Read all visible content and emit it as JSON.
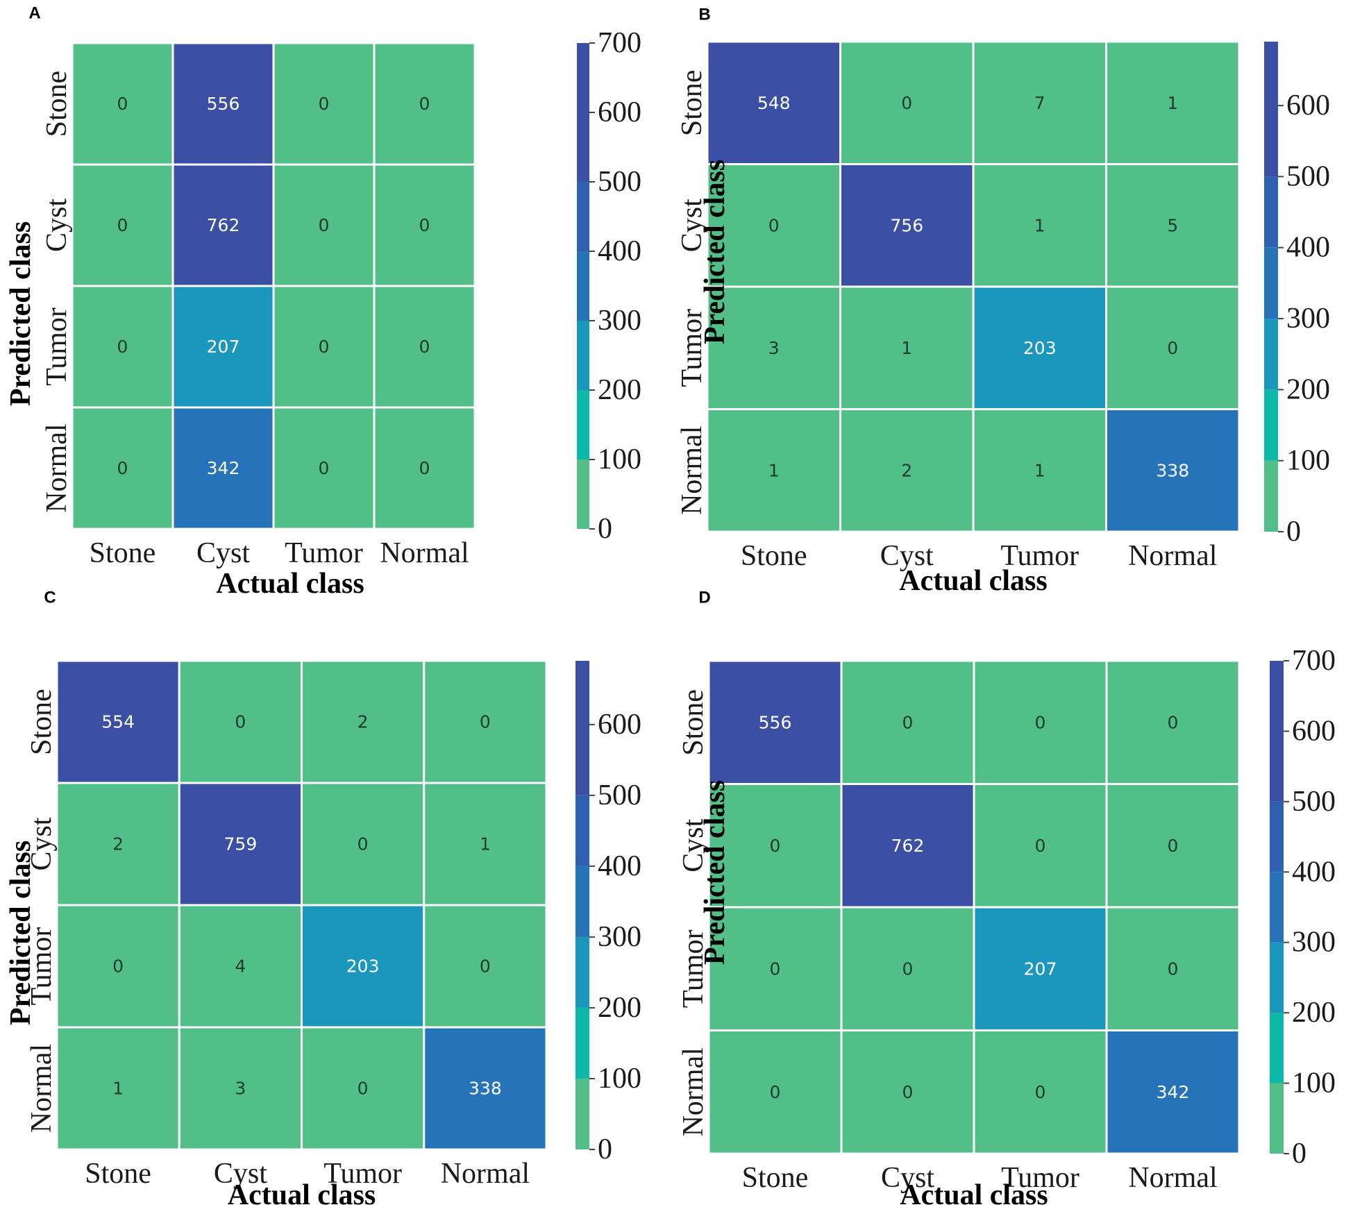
{
  "figure": {
    "colors": {
      "band_0_100": "#52be88",
      "band_100_200": "#0cb8a8",
      "band_200_300": "#1b96bd",
      "band_300_400": "#2673b9",
      "band_400_500": "#2f5fb0",
      "band_500_700": "#3b4fa4",
      "grid_line": "#ffffff",
      "text_dark": "#1d3b2f",
      "text_light": "#ffffff"
    }
  },
  "chart_data": [
    {
      "type": "heatmap",
      "panel": "A",
      "xlabel": "Actual class",
      "ylabel": "Predicted class",
      "x_categories": [
        "Stone",
        "Cyst",
        "Tumor",
        "Normal"
      ],
      "y_categories": [
        "Stone",
        "Cyst",
        "Tumor",
        "Normal"
      ],
      "matrix": [
        [
          0,
          556,
          0,
          0
        ],
        [
          0,
          762,
          0,
          0
        ],
        [
          0,
          207,
          0,
          0
        ],
        [
          0,
          342,
          0,
          0
        ]
      ],
      "colorbar": {
        "vmin": 0,
        "vmax": 700,
        "ticks": [
          0,
          100,
          200,
          300,
          400,
          500,
          600,
          700
        ]
      }
    },
    {
      "type": "heatmap",
      "panel": "B",
      "xlabel": "Actual class",
      "ylabel": "Predicted class",
      "x_categories": [
        "Stone",
        "Cyst",
        "Tumor",
        "Normal"
      ],
      "y_categories": [
        "Stone",
        "Cyst",
        "Tumor",
        "Normal"
      ],
      "matrix": [
        [
          548,
          0,
          7,
          1
        ],
        [
          0,
          756,
          1,
          5
        ],
        [
          3,
          1,
          203,
          0
        ],
        [
          1,
          2,
          1,
          338
        ]
      ],
      "colorbar": {
        "vmin": 0,
        "vmax": 690,
        "ticks": [
          0,
          100,
          200,
          300,
          400,
          500,
          600
        ]
      }
    },
    {
      "type": "heatmap",
      "panel": "C",
      "xlabel": "Actual class",
      "ylabel": "Predicted class",
      "x_categories": [
        "Stone",
        "Cyst",
        "Tumor",
        "Normal"
      ],
      "y_categories": [
        "Stone",
        "Cyst",
        "Tumor",
        "Normal"
      ],
      "matrix": [
        [
          554,
          0,
          2,
          0
        ],
        [
          2,
          759,
          0,
          1
        ],
        [
          0,
          4,
          203,
          0
        ],
        [
          1,
          3,
          0,
          338
        ]
      ],
      "colorbar": {
        "vmin": 0,
        "vmax": 690,
        "ticks": [
          0,
          100,
          200,
          300,
          400,
          500,
          600
        ]
      }
    },
    {
      "type": "heatmap",
      "panel": "D",
      "xlabel": "Actual class",
      "ylabel": "Predicted class",
      "x_categories": [
        "Stone",
        "Cyst",
        "Tumor",
        "Normal"
      ],
      "y_categories": [
        "Stone",
        "Cyst",
        "Tumor",
        "Normal"
      ],
      "matrix": [
        [
          556,
          0,
          0,
          0
        ],
        [
          0,
          762,
          0,
          0
        ],
        [
          0,
          0,
          207,
          0
        ],
        [
          0,
          0,
          0,
          342
        ]
      ],
      "colorbar": {
        "vmin": 0,
        "vmax": 700,
        "ticks": [
          0,
          100,
          200,
          300,
          400,
          500,
          600,
          700
        ]
      }
    }
  ]
}
